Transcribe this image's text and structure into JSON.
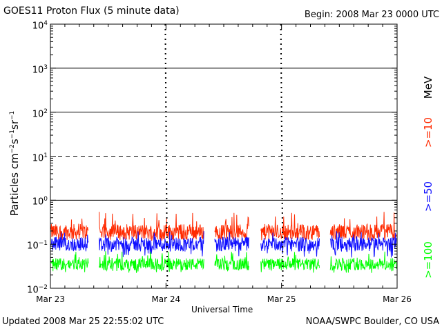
{
  "header": {
    "title": "GOES11 Proton Flux (5 minute data)",
    "begin": "Begin: 2008 Mar 23 0000 UTC"
  },
  "footer": {
    "updated": "Updated 2008 Mar 25 22:55:02 UTC",
    "credit": "NOAA/SWPC Boulder, CO USA"
  },
  "chart_data": {
    "type": "line",
    "title": "GOES11 Proton Flux (5 minute data)",
    "xlabel": "Universal Time",
    "ylabel": "Particles cm-2 s-1 sr-1",
    "y_scale": "log",
    "ylim": [
      0.01,
      10000
    ],
    "y_ticks": [
      {
        "base": "10",
        "exp": "-2",
        "value": 0.01
      },
      {
        "base": "10",
        "exp": "-1",
        "value": 0.1
      },
      {
        "base": "10",
        "exp": "0",
        "value": 1
      },
      {
        "base": "10",
        "exp": "1",
        "value": 10
      },
      {
        "base": "10",
        "exp": "2",
        "value": 100
      },
      {
        "base": "10",
        "exp": "3",
        "value": 1000
      },
      {
        "base": "10",
        "exp": "4",
        "value": 10000
      }
    ],
    "x_ticks": [
      {
        "label": "Mar 23",
        "day": 0
      },
      {
        "label": "Mar 24",
        "day": 1
      },
      {
        "label": "Mar 25",
        "day": 2
      },
      {
        "label": "Mar 26",
        "day": 3
      }
    ],
    "xlim_days": [
      0,
      3
    ],
    "thresholds": [
      {
        "value": 1,
        "style": "solid"
      },
      {
        "value": 10,
        "style": "dashed"
      },
      {
        "value": 100,
        "style": "solid"
      },
      {
        "value": 1000,
        "style": "solid"
      }
    ],
    "data_gaps_days": [
      [
        0.33,
        0.42
      ],
      [
        1.33,
        1.42
      ],
      [
        1.72,
        1.82
      ],
      [
        2.33,
        2.42
      ]
    ],
    "series": [
      {
        "name": ">=10",
        "color": "#ff2a00",
        "typical": 0.19,
        "min": 0.12,
        "max": 0.55
      },
      {
        "name": ">=50",
        "color": "#1010ff",
        "typical": 0.1,
        "min": 0.05,
        "max": 0.2
      },
      {
        "name": ">=100",
        "color": "#00ff00",
        "typical": 0.035,
        "min": 0.022,
        "max": 0.07
      }
    ],
    "legend": {
      "unit": "MeV",
      "placement": "right"
    }
  }
}
